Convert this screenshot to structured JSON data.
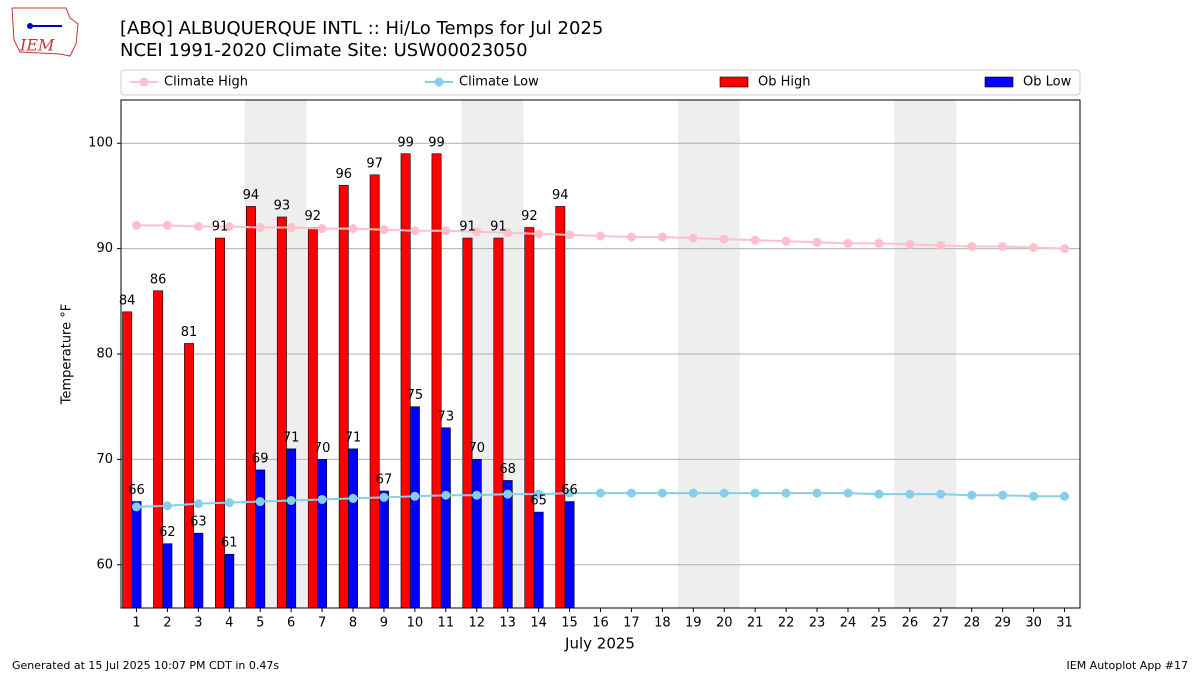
{
  "chart_data": {
    "type": "bar_line",
    "logo_text": "IEM",
    "title": "[ABQ] ALBUQUERQUE INTL :: Hi/Lo Temps for Jul 2025",
    "subtitle": "NCEI 1991-2020 Climate Site: USW00023050",
    "x_label": "July 2025",
    "y_label": "Temperature °F",
    "footer_left": "Generated at 15 Jul 2025 10:07 PM CDT in 0.47s",
    "footer_right": "IEM Autoplot App #17",
    "x": [
      1,
      2,
      3,
      4,
      5,
      6,
      7,
      8,
      9,
      10,
      11,
      12,
      13,
      14,
      15,
      16,
      17,
      18,
      19,
      20,
      21,
      22,
      23,
      24,
      25,
      26,
      27,
      28,
      29,
      30,
      31
    ],
    "xticks": [
      1,
      2,
      3,
      4,
      5,
      6,
      7,
      8,
      9,
      10,
      11,
      12,
      13,
      14,
      15,
      16,
      17,
      18,
      19,
      20,
      21,
      22,
      23,
      24,
      25,
      26,
      27,
      28,
      29,
      30,
      31
    ],
    "xlim": [
      0.5,
      31.5
    ],
    "ylim": [
      55.9,
      104.1
    ],
    "yticks": [
      60,
      70,
      80,
      90,
      100
    ],
    "grid": true,
    "shaded_days": [
      5,
      6,
      12,
      13,
      19,
      20,
      26,
      27
    ],
    "series": [
      {
        "name": "Climate High",
        "kind": "line",
        "color": "#ffc0cb",
        "values": [
          92.2,
          92.2,
          92.1,
          92.1,
          92.0,
          92.0,
          91.9,
          91.9,
          91.8,
          91.7,
          91.7,
          91.6,
          91.5,
          91.4,
          91.3,
          91.2,
          91.1,
          91.1,
          91.0,
          90.9,
          90.8,
          90.7,
          90.6,
          90.5,
          90.5,
          90.4,
          90.3,
          90.2,
          90.2,
          90.1,
          90.0
        ]
      },
      {
        "name": "Climate Low",
        "kind": "line",
        "color": "#87ceeb",
        "values": [
          65.5,
          65.6,
          65.8,
          65.9,
          66.0,
          66.1,
          66.2,
          66.3,
          66.4,
          66.5,
          66.6,
          66.6,
          66.7,
          66.7,
          66.8,
          66.8,
          66.8,
          66.8,
          66.8,
          66.8,
          66.8,
          66.8,
          66.8,
          66.8,
          66.7,
          66.7,
          66.7,
          66.6,
          66.6,
          66.5,
          66.5
        ]
      },
      {
        "name": "Ob High",
        "kind": "bar",
        "color": "#ff0000",
        "values": [
          84,
          86,
          81,
          91,
          94,
          93,
          92,
          96,
          97,
          99,
          99,
          91,
          91,
          92,
          94,
          null,
          null,
          null,
          null,
          null,
          null,
          null,
          null,
          null,
          null,
          null,
          null,
          null,
          null,
          null,
          null
        ]
      },
      {
        "name": "Ob Low",
        "kind": "bar",
        "color": "#0000ff",
        "values": [
          66,
          62,
          63,
          61,
          69,
          71,
          70,
          71,
          67,
          75,
          73,
          70,
          68,
          65,
          66,
          null,
          null,
          null,
          null,
          null,
          null,
          null,
          null,
          null,
          null,
          null,
          null,
          null,
          null,
          null,
          null
        ]
      }
    ]
  }
}
